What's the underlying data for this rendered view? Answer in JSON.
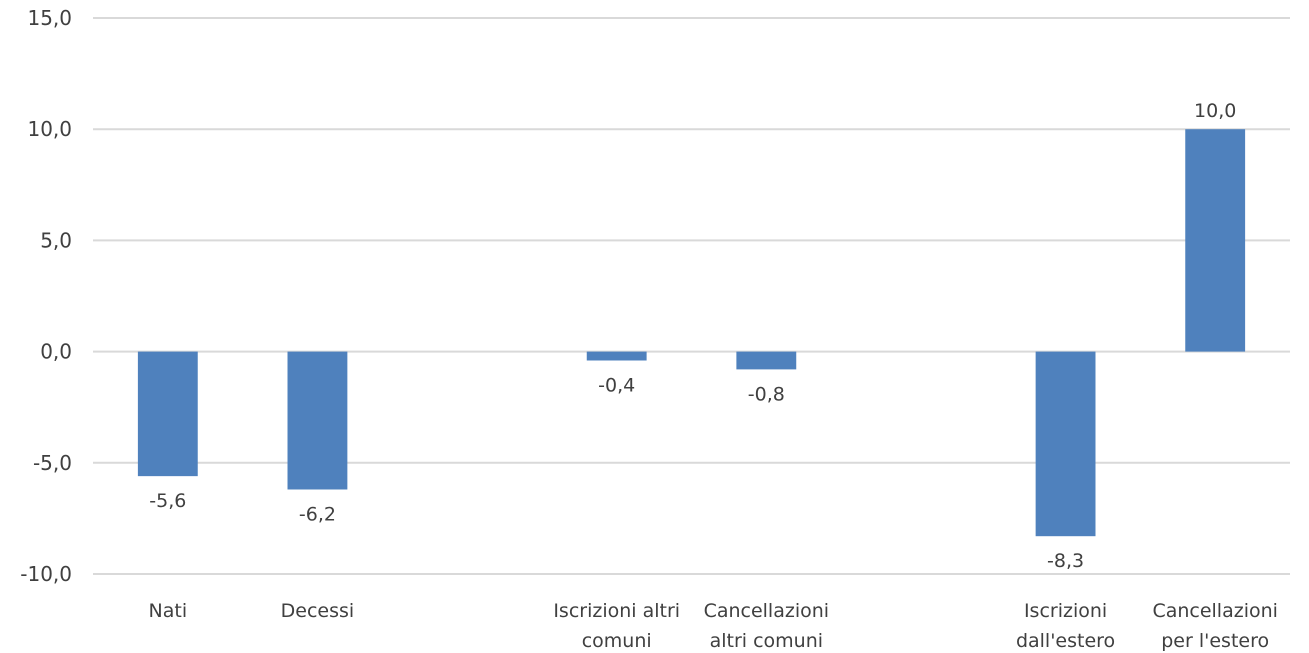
{
  "chart_data": {
    "type": "bar",
    "categories": [
      [
        "Nati"
      ],
      [
        "Decessi"
      ],
      [],
      [
        "Iscrizioni altri",
        "comuni"
      ],
      [
        "Cancellazioni",
        "altri comuni"
      ],
      [],
      [
        "Iscrizioni",
        "dall'estero"
      ],
      [
        "Cancellazioni",
        "per l'estero"
      ]
    ],
    "values": [
      -5.6,
      -6.2,
      null,
      -0.4,
      -0.8,
      null,
      -8.3,
      10.0
    ],
    "data_labels": [
      "-5,6",
      "-6,2",
      "",
      "-0,4",
      "-0,8",
      "",
      "-8,3",
      "10,0"
    ],
    "ylim": [
      -10,
      15
    ],
    "yticks": [
      -10,
      -5,
      0,
      5,
      10,
      15
    ],
    "ytick_labels": [
      "-10,0",
      "-5,0",
      "0,0",
      "5,0",
      "10,0",
      "15,0"
    ],
    "grid": true,
    "bar_color": "#4F81BD",
    "grid_color": "#D9D9D9",
    "title": "",
    "xlabel": "",
    "ylabel": ""
  }
}
